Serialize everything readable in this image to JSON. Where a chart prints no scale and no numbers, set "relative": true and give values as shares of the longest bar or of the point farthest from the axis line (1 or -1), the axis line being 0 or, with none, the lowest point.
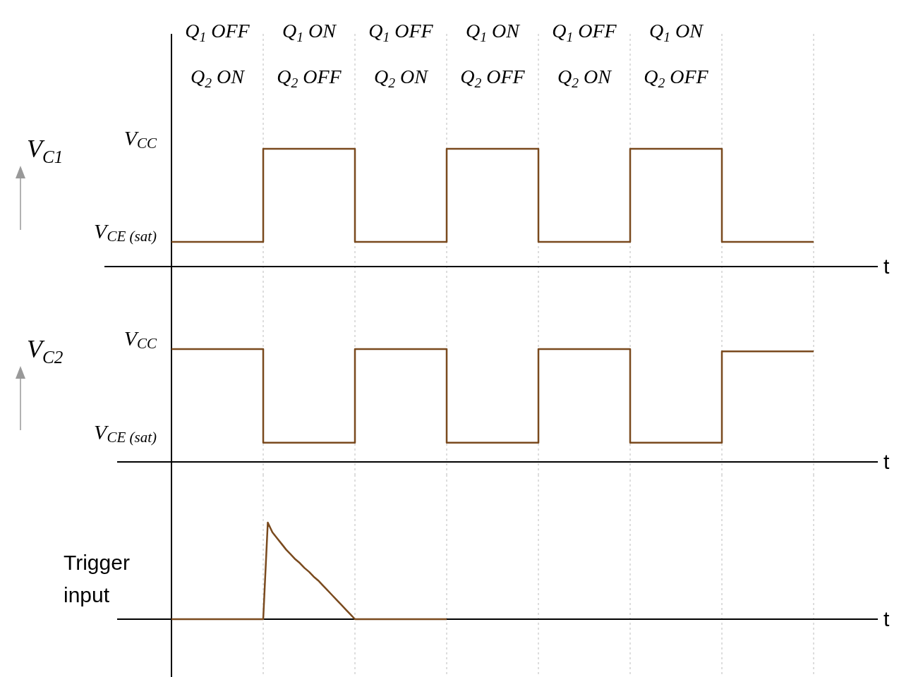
{
  "chart_data": [
    {
      "type": "step",
      "relative": true,
      "ylabel": "V$_{C1}$",
      "xlabel": "t",
      "grid": "x",
      "annotations": [
        "Q$_{1}$ OFF",
        "Q$_{2}$ ON",
        "Q$_{1}$ ON",
        "Q$_{2}$ OFF",
        "Q$_{1}$ OFF",
        "Q$_{2}$ ON",
        "Q$_{1}$ ON",
        "Q$_{2}$ OFF",
        "Q$_{1}$ OFF",
        "Q$_{2}$ ON",
        "Q$_{1}$ ON",
        "Q$_{2}$ OFF",
        "V$_{CC}$",
        "V$_{CE (sat)}$"
      ],
      "categories": [
        null,
        null,
        null,
        null,
        null,
        null,
        null,
        null
      ],
      "series": [
        {
          "color": "#7a4a1e",
          "values": [
            0.21,
            1,
            0.21,
            1,
            0.21,
            1,
            0.21,
            0.21
          ]
        }
      ]
    },
    {
      "type": "step",
      "relative": true,
      "ylabel": "V$_{C2}$",
      "xlabel": "t",
      "grid": "x",
      "annotations": [
        "V$_{CC}$",
        "V$_{CE (sat)}$"
      ],
      "categories": [
        null,
        null,
        null,
        null,
        null,
        null,
        null,
        null
      ],
      "series": [
        {
          "color": "#7a4a1e",
          "values": [
            1,
            0.17,
            1,
            0.17,
            1,
            0.17,
            0.98,
            0.98
          ]
        }
      ]
    },
    {
      "type": "line",
      "relative": true,
      "ylabel": "Trigger input",
      "xlabel": "t",
      "grid": "x",
      "categories": [
        null,
        null,
        null,
        null,
        null,
        null,
        null,
        null,
        null,
        null,
        null,
        null,
        null,
        null,
        null,
        null,
        null,
        null,
        null,
        null,
        null,
        null,
        null,
        null,
        null,
        null,
        null,
        null,
        null,
        null,
        null,
        null,
        null,
        null,
        null,
        null,
        null,
        null,
        null,
        null,
        null,
        null,
        null,
        null,
        null,
        null,
        null,
        null,
        null,
        null,
        null,
        null,
        null,
        null,
        null,
        null,
        null,
        null,
        null,
        null,
        null,
        null,
        null,
        null,
        null,
        null,
        null,
        null,
        null,
        null,
        null,
        null,
        null,
        null,
        null,
        null,
        null,
        null,
        null,
        null,
        null,
        null,
        null,
        null,
        null,
        null,
        null,
        null,
        null,
        null,
        null,
        null,
        null,
        null,
        null,
        null,
        null,
        null,
        null,
        null,
        null,
        null,
        null,
        null,
        null,
        null,
        null,
        null,
        null,
        null,
        null,
        null,
        null,
        null,
        null,
        null,
        null,
        null,
        null,
        null,
        null,
        null,
        null,
        null,
        null,
        null,
        null,
        null,
        null,
        null,
        null,
        null,
        null,
        null,
        null,
        null,
        null,
        null,
        null,
        null,
        null
      ],
      "series": [
        {
          "color": "#7a4a1e",
          "values": [
            0,
            0,
            0,
            0,
            0,
            0,
            0,
            0,
            0,
            0,
            0,
            0,
            0,
            0,
            0,
            0,
            0,
            0,
            0,
            0,
            0,
            1,
            0.9,
            0.84,
            0.78,
            0.72,
            0.67,
            0.62,
            0.58,
            0.53,
            0.49,
            0.44,
            0.4,
            0.35,
            0.3,
            0.25,
            0.2,
            0.15,
            0.1,
            0.05,
            0,
            0,
            0,
            0,
            0,
            0,
            0,
            0,
            0,
            0,
            0,
            0,
            0,
            0,
            0,
            0,
            0,
            0,
            0,
            0,
            0,
            null,
            null,
            null,
            null,
            null,
            null,
            null,
            null,
            null,
            null,
            null,
            null,
            null,
            null,
            null,
            null,
            null,
            null,
            null,
            null,
            null,
            null,
            null,
            null,
            null,
            null,
            null,
            null,
            null,
            null,
            null,
            null,
            null,
            null,
            null,
            null,
            null,
            null,
            null,
            null,
            null,
            null,
            null,
            null,
            null,
            null,
            null,
            null,
            null,
            null,
            null,
            null,
            null,
            null,
            null,
            null,
            null,
            null,
            null,
            null,
            null,
            null,
            null,
            null,
            null,
            null,
            null,
            null,
            null,
            null,
            null,
            null,
            null,
            null,
            null,
            null,
            null,
            null,
            null,
            null
          ]
        }
      ]
    }
  ]
}
